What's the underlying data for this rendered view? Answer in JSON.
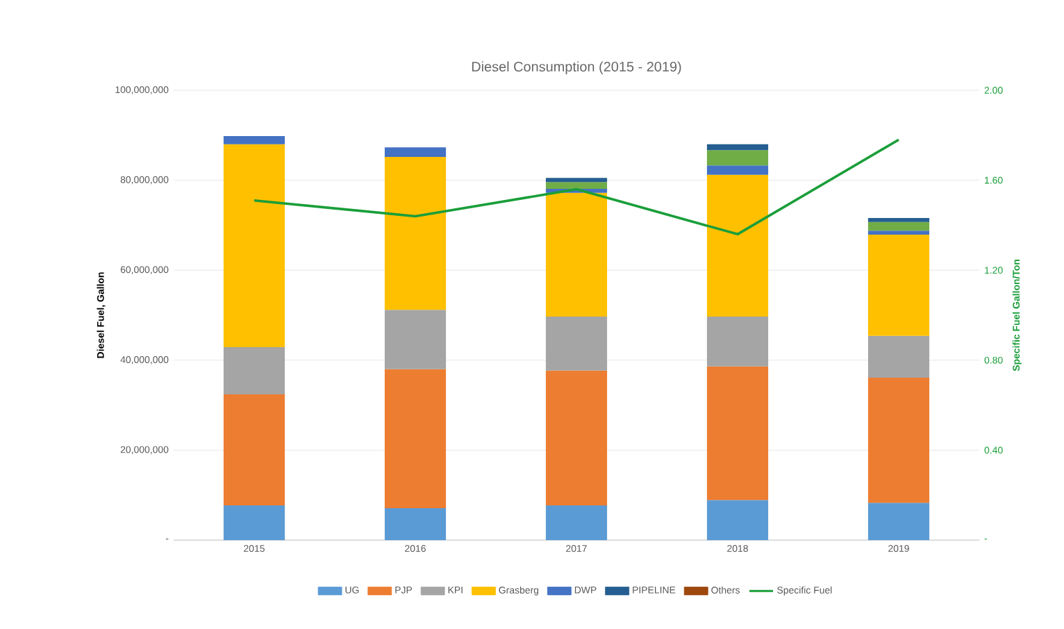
{
  "chart_data": {
    "type": "bar",
    "stacked": true,
    "title": "Diesel Consumption (2015 - 2019)",
    "ylabel": "Diesel Fuel, Gallon",
    "y2label": "Specific Fuel Gallon/Ton",
    "categories": [
      "2015",
      "2016",
      "2017",
      "2018",
      "2019"
    ],
    "series": [
      {
        "name": "UG",
        "color": "#5b9bd5",
        "values": [
          7700000,
          7100000,
          7700000,
          8900000,
          8300000
        ]
      },
      {
        "name": "PJP",
        "color": "#ed7d31",
        "values": [
          24700000,
          30900000,
          30000000,
          29700000,
          27800000
        ]
      },
      {
        "name": "KPI",
        "color": "#a5a5a5",
        "values": [
          10500000,
          13200000,
          12000000,
          11100000,
          9300000
        ]
      },
      {
        "name": "Grasberg",
        "color": "#ffc000",
        "values": [
          45100000,
          34000000,
          27500000,
          31500000,
          22500000
        ]
      },
      {
        "name": "DWP",
        "color": "#4472c4",
        "values": [
          1800000,
          2100000,
          900000,
          2100000,
          900000
        ]
      },
      {
        "color": "#70ad47",
        "values": [
          null,
          null,
          1500000,
          3400000,
          1900000
        ]
      },
      {
        "name": "PIPELINE",
        "color": "#255e91",
        "values": [
          null,
          null,
          900000,
          1300000,
          900000
        ]
      },
      {
        "name": "Others",
        "color": "#9e480e",
        "values": [
          null,
          null,
          null,
          null,
          null
        ]
      },
      {
        "name": "Specific Fuel",
        "type": "line",
        "axis": "y2",
        "color": "#1a9e3a",
        "values": [
          1.51,
          1.44,
          1.56,
          1.36,
          1.78
        ]
      }
    ],
    "ylim": [
      0,
      100000000
    ],
    "yticks": [
      {
        "value": 0,
        "label": "-"
      },
      {
        "value": 20000000,
        "label": "20,000,000"
      },
      {
        "value": 40000000,
        "label": "40,000,000"
      },
      {
        "value": 60000000,
        "label": "60,000,000"
      },
      {
        "value": 80000000,
        "label": "80,000,000"
      },
      {
        "value": 100000000,
        "label": "100,000,000"
      }
    ],
    "y2lim": [
      0,
      2
    ],
    "y2ticks": [
      {
        "value": 0,
        "label": "-"
      },
      {
        "value": 0.4,
        "label": "0.40"
      },
      {
        "value": 0.8,
        "label": "0.80"
      },
      {
        "value": 1.2,
        "label": "1.20"
      },
      {
        "value": 1.6,
        "label": "1.60"
      },
      {
        "value": 2,
        "label": "2.00"
      }
    ],
    "grid": "y",
    "legend": "bottom"
  }
}
